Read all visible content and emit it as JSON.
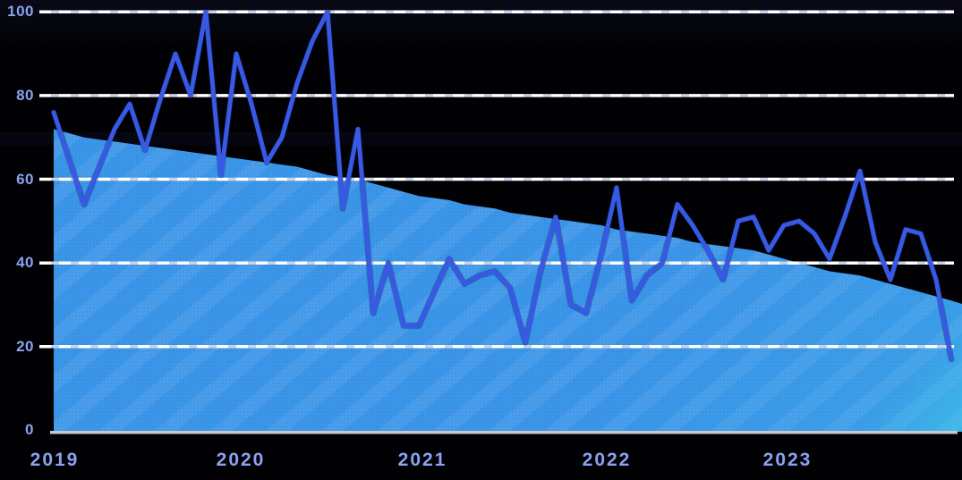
{
  "page": {
    "background_color": "#010104",
    "description": "Dark-background interest-over-time chart (Google-Trends style): declining blue area series with a volatile royal-blue line series, 2019-2023"
  },
  "chart_data": {
    "type": "area+line",
    "title": "",
    "xlabel": "",
    "ylabel": "",
    "x_tick_labels": [
      "2019",
      "2020",
      "2021",
      "2022",
      "2023"
    ],
    "y_tick_labels_top_to_bottom": [
      "100",
      "80",
      "60",
      "40",
      "20",
      "0"
    ],
    "ylim": [
      0,
      100
    ],
    "x_range": "Jan 2019 - Dec 2023, monthly, 60 points per series",
    "gridlines": {
      "style": "horizontal dashed",
      "values": [
        100,
        80,
        60,
        40,
        20
      ]
    },
    "legend_position": "none",
    "colors": {
      "area_fill": "#3B96E9",
      "area_stripe_highlight": "#FFFFFF",
      "area_corner_glow": "#3EDAE8",
      "line": "#3759E3",
      "axis_label_text": "#8BA1F2",
      "gridline_dash": "#FFFFFF",
      "gridline_gap_dash": "#C9D3E8",
      "axis_line": "#C5C9D1"
    },
    "series": [
      {
        "name": "steady-decline-area",
        "type": "area",
        "values": [
          72,
          71,
          70,
          69.5,
          69,
          68.5,
          68,
          67.5,
          67,
          66.5,
          66,
          65.5,
          65,
          64.5,
          64,
          63.5,
          63,
          62,
          61,
          60.5,
          60,
          59,
          58,
          57,
          56,
          55.5,
          55,
          54,
          53.5,
          53,
          52,
          51.5,
          51,
          50.5,
          50,
          49.5,
          49,
          48,
          47.5,
          47,
          46.5,
          46,
          45,
          44.5,
          44,
          43.5,
          43,
          42,
          41,
          40,
          39,
          38,
          37.5,
          37,
          36,
          35,
          34,
          33,
          32,
          31
        ]
      },
      {
        "name": "volatile-line",
        "type": "line",
        "values": [
          76,
          65,
          54,
          63,
          72,
          78,
          67,
          79,
          90,
          80,
          100,
          61,
          90,
          78,
          64,
          70,
          83,
          93,
          100,
          53,
          72,
          28,
          40,
          25,
          25,
          33,
          41,
          35,
          37,
          38,
          34,
          21,
          38,
          51,
          30,
          28,
          42,
          58,
          31,
          37,
          40,
          54,
          49,
          43,
          36,
          50,
          51,
          43,
          49,
          50,
          47,
          41,
          51,
          62,
          45,
          36,
          48,
          47,
          36,
          17
        ]
      }
    ]
  }
}
